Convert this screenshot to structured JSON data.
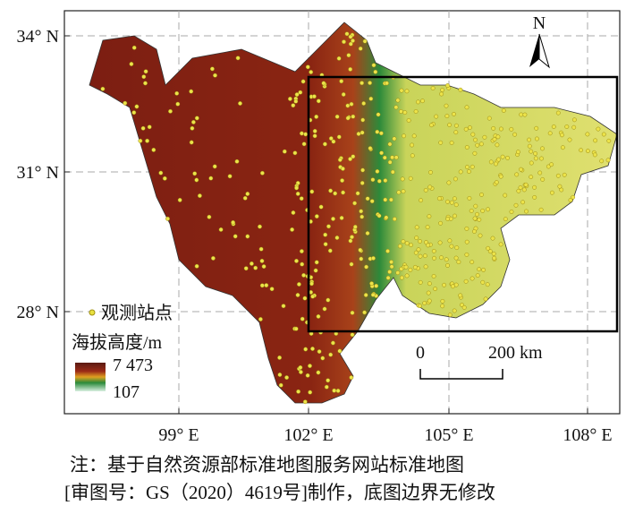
{
  "map": {
    "lon_labels": [
      "99° E",
      "102° E",
      "105° E",
      "108° E"
    ],
    "lat_labels": [
      "34° N",
      "31° N",
      "28° N"
    ],
    "north": "N",
    "legend": {
      "station": "观测站点",
      "elevation_title": "海拔高度/m",
      "elevation_max": "7 473",
      "elevation_min": "107"
    },
    "scale_bar": {
      "start": "0",
      "end": "200 km"
    },
    "note": [
      "注：基于自然资源部标准地图服务网站标准地图",
      "[审图号：GS（2020）4619号]制作，底图边界无修改"
    ]
  }
}
